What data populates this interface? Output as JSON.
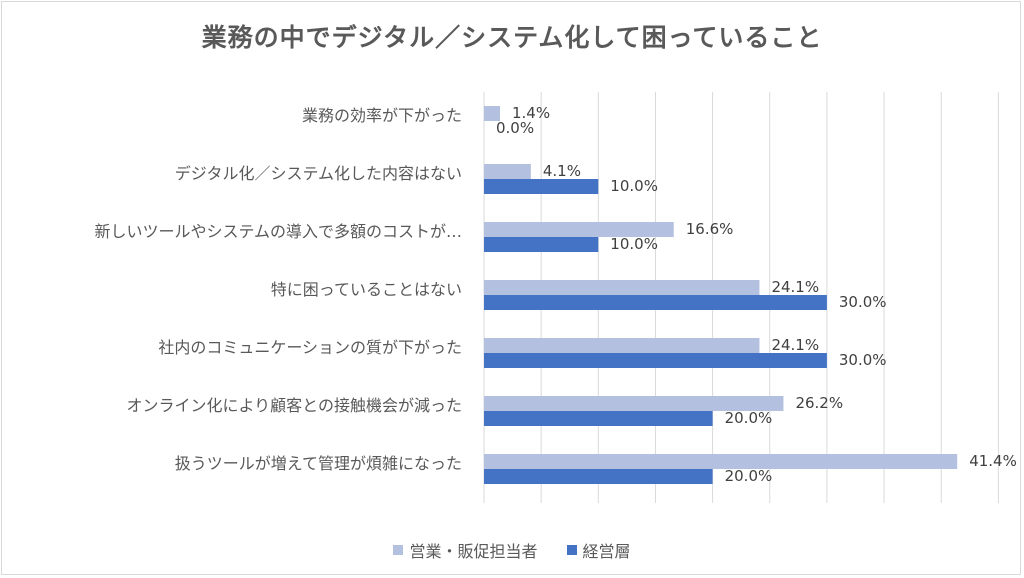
{
  "chart_data": {
    "type": "bar",
    "orientation": "horizontal",
    "title": "業務の中でデジタル／システム化して困っていること",
    "categories": [
      "業務の効率が下がった",
      "デジタル化／システム化した内容はない",
      "新しいツールやシステムの導入で多額のコストが…",
      "特に困っていることはない",
      "社内のコミュニケーションの質が下がった",
      "オンライン化により顧客との接触機会が減った",
      "扱うツールが増えて管理が煩雑になった"
    ],
    "series": [
      {
        "name": "営業・販促担当者",
        "color": "#b4c0df",
        "values": [
          1.4,
          4.1,
          16.6,
          24.1,
          24.1,
          26.2,
          41.4
        ],
        "labels": [
          "1.4%",
          "4.1%",
          "16.6%",
          "24.1%",
          "24.1%",
          "26.2%",
          "41.4%"
        ]
      },
      {
        "name": "経営層",
        "color": "#4472c4",
        "values": [
          0.0,
          10.0,
          10.0,
          30.0,
          30.0,
          20.0,
          20.0
        ],
        "labels": [
          "0.0%",
          "10.0%",
          "10.0%",
          "30.0%",
          "30.0%",
          "20.0%",
          "20.0%"
        ]
      }
    ],
    "xlim": [
      0,
      45
    ],
    "grid": true,
    "legend": "bottom"
  }
}
